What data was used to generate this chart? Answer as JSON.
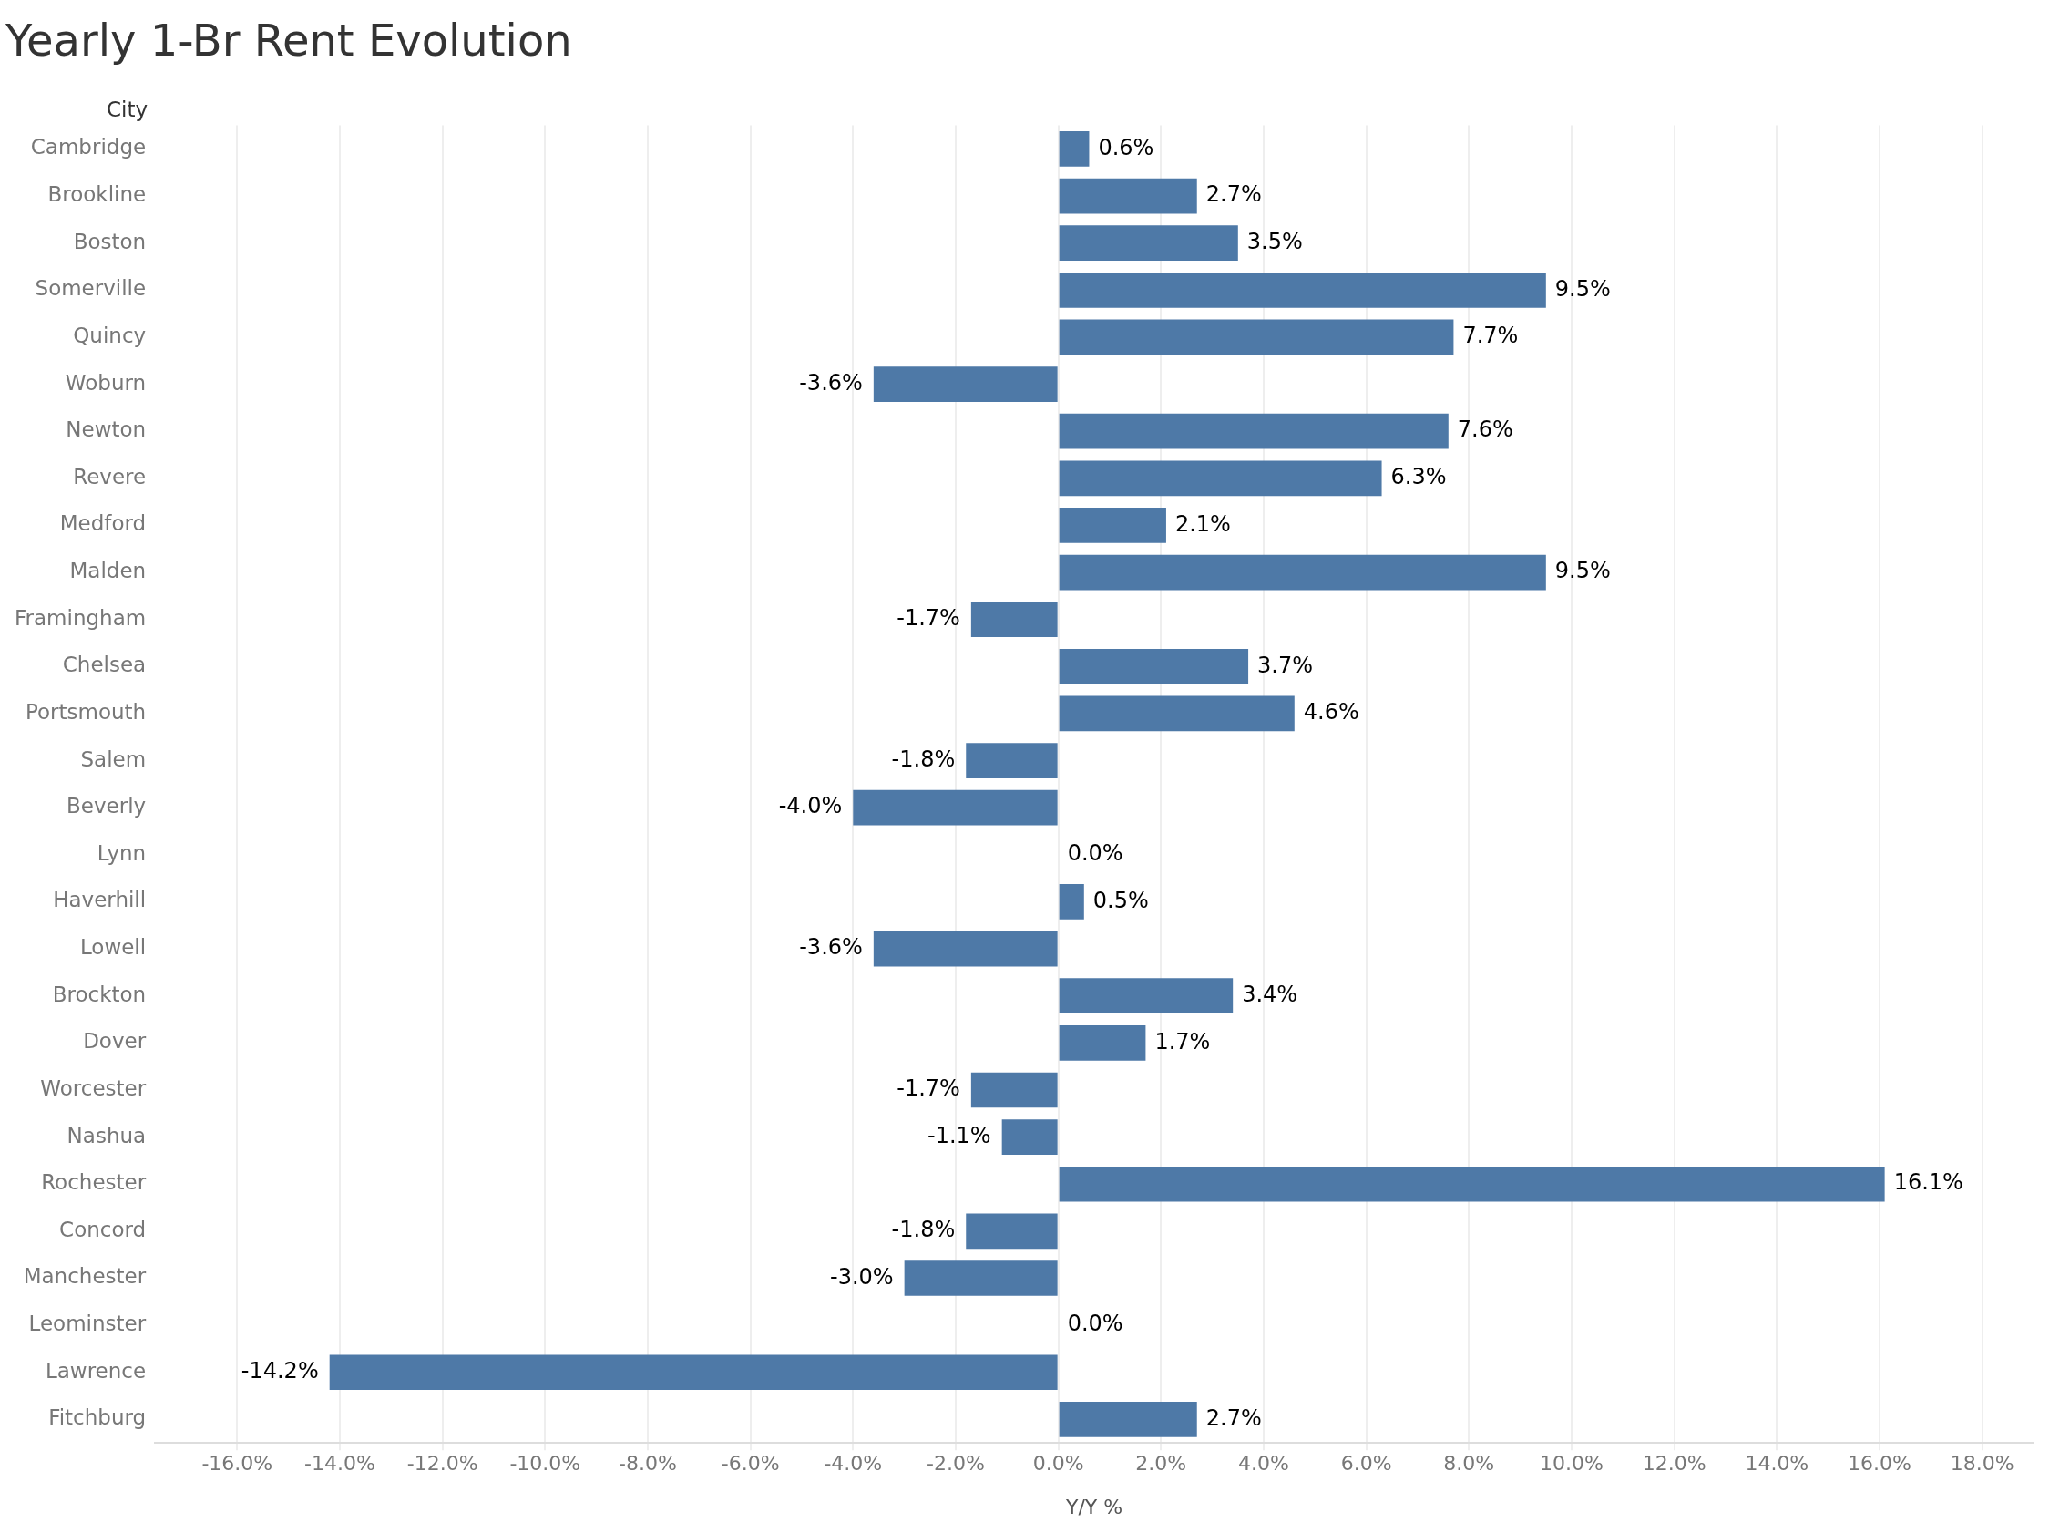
{
  "chart_data": {
    "type": "bar",
    "orientation": "horizontal",
    "title": "Yearly 1-Br Rent Evolution",
    "ylabel": "City",
    "xlabel": "Y/Y %",
    "categories": [
      "Cambridge",
      "Brookline",
      "Boston",
      "Somerville",
      "Quincy",
      "Woburn",
      "Newton",
      "Revere",
      "Medford",
      "Malden",
      "Framingham",
      "Chelsea",
      "Portsmouth",
      "Salem",
      "Beverly",
      "Lynn",
      "Haverhill",
      "Lowell",
      "Brockton",
      "Dover",
      "Worcester",
      "Nashua",
      "Rochester",
      "Concord",
      "Manchester",
      "Leominster",
      "Lawrence",
      "Fitchburg"
    ],
    "values": [
      0.6,
      2.7,
      3.5,
      9.5,
      7.7,
      -3.6,
      7.6,
      6.3,
      2.1,
      9.5,
      -1.7,
      3.7,
      4.6,
      -1.8,
      -4.0,
      0.0,
      0.5,
      -3.6,
      3.4,
      1.7,
      -1.7,
      -1.1,
      16.1,
      -1.8,
      -3.0,
      0.0,
      -14.2,
      2.7
    ],
    "value_labels": [
      "0.6%",
      "2.7%",
      "3.5%",
      "9.5%",
      "7.7%",
      "-3.6%",
      "7.6%",
      "6.3%",
      "2.1%",
      "9.5%",
      "-1.7%",
      "3.7%",
      "4.6%",
      "-1.8%",
      "-4.0%",
      "0.0%",
      "0.5%",
      "-3.6%",
      "3.4%",
      "1.7%",
      "-1.7%",
      "-1.1%",
      "16.1%",
      "-1.8%",
      "-3.0%",
      "0.0%",
      "-14.2%",
      "2.7%"
    ],
    "color": "#4e79a7",
    "xlim": [
      -17.6,
      19.0
    ],
    "xticks": [
      {
        "value": -16,
        "label": "-16.0%"
      },
      {
        "value": -14,
        "label": "-14.0%"
      },
      {
        "value": -12,
        "label": "-12.0%"
      },
      {
        "value": -10,
        "label": "-10.0%"
      },
      {
        "value": -8,
        "label": "-8.0%"
      },
      {
        "value": -6,
        "label": "-6.0%"
      },
      {
        "value": -4,
        "label": "-4.0%"
      },
      {
        "value": -2,
        "label": "-2.0%"
      },
      {
        "value": 0,
        "label": "0.0%"
      },
      {
        "value": 2,
        "label": "2.0%"
      },
      {
        "value": 4,
        "label": "4.0%"
      },
      {
        "value": 6,
        "label": "6.0%"
      },
      {
        "value": 8,
        "label": "8.0%"
      },
      {
        "value": 10,
        "label": "10.0%"
      },
      {
        "value": 12,
        "label": "12.0%"
      },
      {
        "value": 14,
        "label": "14.0%"
      },
      {
        "value": 16,
        "label": "16.0%"
      },
      {
        "value": 18,
        "label": "18.0%"
      }
    ],
    "grid": "x",
    "legend": false
  }
}
